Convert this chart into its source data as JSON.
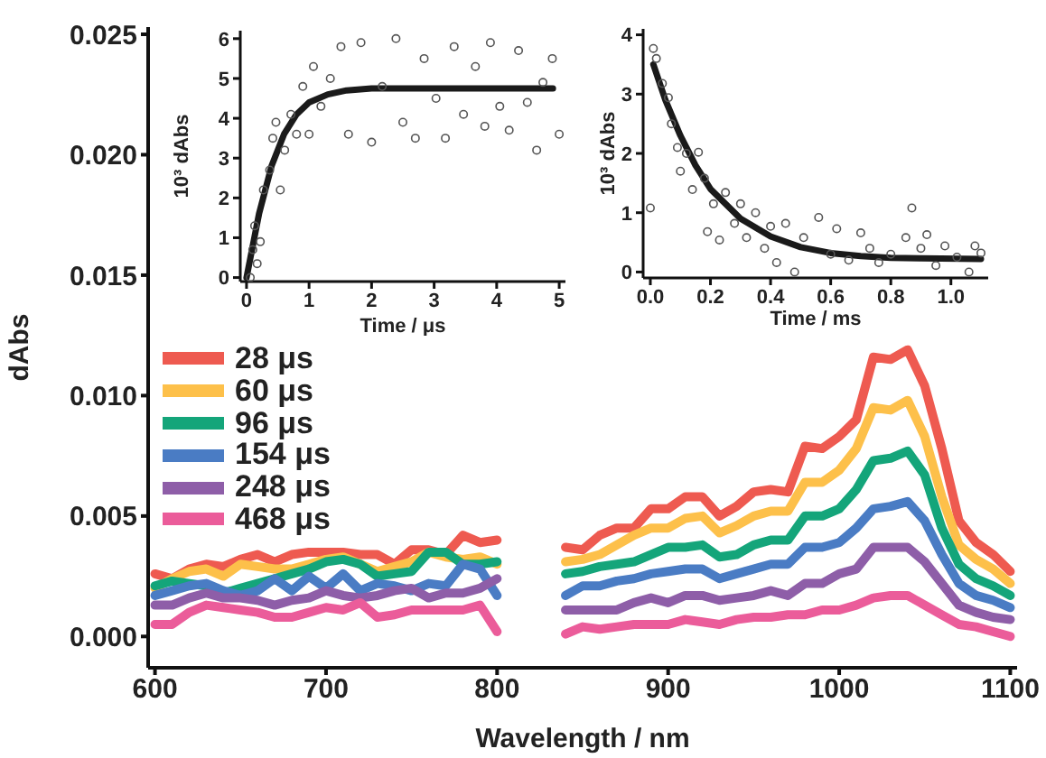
{
  "chart_data": [
    {
      "type": "line",
      "xlabel": "Wavelength / nm",
      "ylabel": "dAbs",
      "legend": "left",
      "line_style": "solid",
      "marker": "none",
      "x": [
        600,
        610,
        620,
        630,
        640,
        650,
        660,
        670,
        680,
        690,
        700,
        710,
        720,
        730,
        740,
        750,
        760,
        770,
        780,
        790,
        800,
        810,
        820,
        830,
        840,
        850,
        860,
        870,
        880,
        890,
        900,
        910,
        920,
        930,
        940,
        950,
        960,
        970,
        980,
        990,
        1000,
        1010,
        1020,
        1030,
        1040,
        1050,
        1060,
        1070,
        1080,
        1090,
        1100
      ],
      "xlim": [
        596,
        1104
      ],
      "xticks": [
        600,
        700,
        800,
        900,
        1000,
        1100
      ],
      "ylim": [
        -0.0013,
        0.0253
      ],
      "yticks": [
        {
          "value": 0,
          "label": "0.000"
        },
        {
          "value": 0.005,
          "label": "0.005"
        },
        {
          "value": 0.01,
          "label": "0.010"
        },
        {
          "value": 0.015,
          "label": "0.015"
        },
        {
          "value": 0.02,
          "label": "0.020"
        },
        {
          "value": 0.025,
          "label": "0.025"
        }
      ],
      "series": [
        {
          "name": "28 μs",
          "color": "#ee5a50",
          "values": [
            0.0026,
            0.0024,
            0.0028,
            0.003,
            0.0029,
            0.0032,
            0.0034,
            0.0031,
            0.0034,
            0.0035,
            0.0035,
            0.0035,
            0.0034,
            0.0034,
            0.003,
            0.0036,
            0.0036,
            0.0034,
            0.0042,
            0.0039,
            0.004,
            null,
            null,
            null,
            0.0037,
            0.0036,
            0.0042,
            0.0045,
            0.0045,
            0.0053,
            0.0053,
            0.0058,
            0.0058,
            0.005,
            0.0054,
            0.006,
            0.0061,
            0.006,
            0.0079,
            0.0078,
            0.0083,
            0.009,
            0.0116,
            0.0115,
            0.0119,
            0.0104,
            0.0078,
            0.0048,
            0.0039,
            0.0034,
            0.0027
          ]
        },
        {
          "name": "60 μs",
          "color": "#fdc04a",
          "values": [
            0.002,
            0.0024,
            0.0027,
            0.0028,
            0.0025,
            0.003,
            0.0029,
            0.0028,
            0.0028,
            0.003,
            0.0032,
            0.0033,
            0.003,
            0.0027,
            0.0029,
            0.0031,
            0.0035,
            0.0033,
            0.0032,
            0.0033,
            0.003,
            null,
            null,
            null,
            0.0031,
            0.0032,
            0.0034,
            0.0038,
            0.0042,
            0.0045,
            0.0045,
            0.0049,
            0.005,
            0.0043,
            0.0046,
            0.005,
            0.0052,
            0.0052,
            0.0064,
            0.0064,
            0.0069,
            0.0078,
            0.0095,
            0.0094,
            0.0098,
            0.0083,
            0.0058,
            0.0038,
            0.0032,
            0.0028,
            0.0022
          ]
        },
        {
          "name": "96 μs",
          "color": "#14a57a",
          "values": [
            0.0021,
            0.0023,
            0.0022,
            0.0021,
            0.0018,
            0.002,
            0.0022,
            0.0024,
            0.0026,
            0.0028,
            0.0031,
            0.0032,
            0.003,
            0.0025,
            0.0026,
            0.0027,
            0.0035,
            0.0035,
            0.003,
            0.003,
            0.0031,
            null,
            null,
            null,
            0.0026,
            0.0027,
            0.0029,
            0.003,
            0.0031,
            0.0034,
            0.0037,
            0.0037,
            0.0038,
            0.0033,
            0.0034,
            0.0038,
            0.004,
            0.004,
            0.005,
            0.005,
            0.0053,
            0.0061,
            0.0073,
            0.0074,
            0.0077,
            0.0067,
            0.0045,
            0.003,
            0.0024,
            0.0021,
            0.0017
          ]
        },
        {
          "name": "154 μs",
          "color": "#4a7cc4",
          "values": [
            0.0017,
            0.0019,
            0.0021,
            0.0022,
            0.0019,
            0.0017,
            0.0019,
            0.0024,
            0.0019,
            0.0025,
            0.002,
            0.0026,
            0.0019,
            0.0022,
            0.0021,
            0.0019,
            0.0022,
            0.0021,
            0.003,
            0.0028,
            0.0017,
            null,
            null,
            null,
            0.0017,
            0.0021,
            0.0021,
            0.0023,
            0.0024,
            0.0026,
            0.0027,
            0.0028,
            0.0028,
            0.0024,
            0.0026,
            0.0028,
            0.003,
            0.003,
            0.0037,
            0.0037,
            0.0039,
            0.0045,
            0.0053,
            0.0054,
            0.0056,
            0.0048,
            0.0034,
            0.0022,
            0.0017,
            0.0015,
            0.0012
          ]
        },
        {
          "name": "248 μs",
          "color": "#8e5ea8",
          "values": [
            0.0013,
            0.0013,
            0.0016,
            0.0018,
            0.0016,
            0.0016,
            0.0015,
            0.0013,
            0.0015,
            0.0016,
            0.0019,
            0.0017,
            0.0016,
            0.0017,
            0.0019,
            0.002,
            0.0016,
            0.0018,
            0.0018,
            0.002,
            0.0024,
            null,
            null,
            null,
            0.0011,
            0.0011,
            0.0011,
            0.0011,
            0.0014,
            0.0016,
            0.0014,
            0.0017,
            0.0017,
            0.0015,
            0.0016,
            0.0017,
            0.0019,
            0.0017,
            0.0022,
            0.0022,
            0.0026,
            0.0028,
            0.0037,
            0.0037,
            0.0037,
            0.0031,
            0.0022,
            0.0013,
            0.001,
            0.0008,
            0.0007
          ]
        },
        {
          "name": "468 μs",
          "color": "#eb5c9a",
          "values": [
            0.0005,
            0.0005,
            0.001,
            0.0013,
            0.0012,
            0.0011,
            0.001,
            0.0008,
            0.0008,
            0.001,
            0.0012,
            0.0011,
            0.0014,
            0.0008,
            0.0009,
            0.0011,
            0.0011,
            0.0011,
            0.0011,
            0.0013,
            0.0002,
            null,
            null,
            null,
            0.0001,
            0.0004,
            0.0003,
            0.0004,
            0.0005,
            0.0005,
            0.0005,
            0.0007,
            0.0006,
            0.0005,
            0.0007,
            0.0008,
            0.0008,
            0.0009,
            0.0009,
            0.0011,
            0.0011,
            0.0013,
            0.0016,
            0.0017,
            0.0017,
            0.0013,
            0.0009,
            0.0005,
            0.0004,
            0.0002,
            0
          ]
        }
      ]
    },
    {
      "type": "scatter",
      "xlabel": "Time / μs",
      "ylabel": "10³ dAbs",
      "marker": "circle",
      "xlim": [
        -0.1,
        5.1
      ],
      "xticks": [
        0,
        1,
        2,
        3,
        4,
        5
      ],
      "ylim": [
        -0.1,
        6.2
      ],
      "yticks": [
        0,
        1,
        2,
        3,
        4,
        5,
        6
      ],
      "series": [
        {
          "color": "#555555",
          "x": [
            0.06,
            0.1,
            0.13,
            0.17,
            0.22,
            0.27,
            0.37,
            0.42,
            0.47,
            0.54,
            0.61,
            0.71,
            0.8,
            0.9,
            1.0,
            1.07,
            1.19,
            1.34,
            1.51,
            1.63,
            1.83,
            2.0,
            2.17,
            2.39,
            2.5,
            2.7,
            2.84,
            3.03,
            3.18,
            3.32,
            3.47,
            3.66,
            3.81,
            3.9,
            4.05,
            4.2,
            4.35,
            4.49,
            4.64,
            4.74,
            4.89,
            5.0
          ],
          "values": [
            0.0,
            0.7,
            1.3,
            0.35,
            0.9,
            2.2,
            2.7,
            3.5,
            3.9,
            2.2,
            3.2,
            4.1,
            3.6,
            4.8,
            3.6,
            5.3,
            4.3,
            5.0,
            5.8,
            3.6,
            5.9,
            3.4,
            4.8,
            6.0,
            3.9,
            3.5,
            5.5,
            4.5,
            3.5,
            5.8,
            4.1,
            5.3,
            3.8,
            5.9,
            4.3,
            3.7,
            5.7,
            4.4,
            3.2,
            4.9,
            5.5,
            3.6
          ]
        },
        {
          "type": "line",
          "color": "#1a1a1a",
          "marker": "none",
          "x": [
            0,
            0.2,
            0.4,
            0.6,
            0.8,
            1.0,
            1.3,
            1.6,
            2.0,
            3.0,
            4.0,
            4.9
          ],
          "values": [
            0,
            1.6,
            2.8,
            3.6,
            4.1,
            4.4,
            4.6,
            4.7,
            4.75,
            4.75,
            4.75,
            4.75
          ]
        }
      ]
    },
    {
      "type": "scatter",
      "xlabel": "Time / ms",
      "ylabel": "10³ dAbs",
      "marker": "circle",
      "xlim": [
        -0.024,
        1.124
      ],
      "xticks": [
        {
          "value": 0,
          "label": "0.0"
        },
        0.2,
        0.4,
        0.6,
        0.8,
        {
          "value": 1,
          "label": "1.0"
        }
      ],
      "ylim": [
        -0.1,
        4.1
      ],
      "yticks": [
        0,
        1,
        2,
        3,
        4
      ],
      "series": [
        {
          "color": "#555555",
          "x": [
            0.0,
            0.01,
            0.02,
            0.04,
            0.06,
            0.07,
            0.09,
            0.1,
            0.12,
            0.14,
            0.16,
            0.18,
            0.19,
            0.21,
            0.23,
            0.25,
            0.28,
            0.3,
            0.32,
            0.35,
            0.38,
            0.4,
            0.42,
            0.45,
            0.48,
            0.51,
            0.56,
            0.6,
            0.62,
            0.66,
            0.7,
            0.73,
            0.76,
            0.8,
            0.85,
            0.87,
            0.9,
            0.92,
            0.95,
            0.98,
            1.02,
            1.06,
            1.08,
            1.1
          ],
          "values": [
            1.08,
            3.77,
            3.6,
            3.18,
            2.94,
            2.5,
            2.1,
            1.7,
            2.0,
            1.39,
            2.02,
            1.58,
            0.68,
            1.15,
            0.54,
            1.34,
            0.82,
            1.15,
            0.58,
            1.0,
            0.4,
            0.77,
            0.16,
            0.82,
            0.0,
            0.58,
            0.92,
            0.3,
            0.73,
            0.2,
            0.66,
            0.4,
            0.16,
            0.3,
            0.58,
            1.08,
            0.4,
            0.63,
            0.11,
            0.44,
            0.25,
            0.0,
            0.44,
            0.32
          ]
        },
        {
          "type": "line",
          "color": "#1a1a1a",
          "marker": "none",
          "x": [
            0.01,
            0.05,
            0.1,
            0.15,
            0.2,
            0.3,
            0.4,
            0.5,
            0.6,
            0.7,
            0.8,
            0.9,
            1.1
          ],
          "values": [
            3.5,
            2.9,
            2.3,
            1.8,
            1.4,
            0.9,
            0.6,
            0.42,
            0.32,
            0.27,
            0.24,
            0.23,
            0.22
          ]
        }
      ]
    }
  ]
}
